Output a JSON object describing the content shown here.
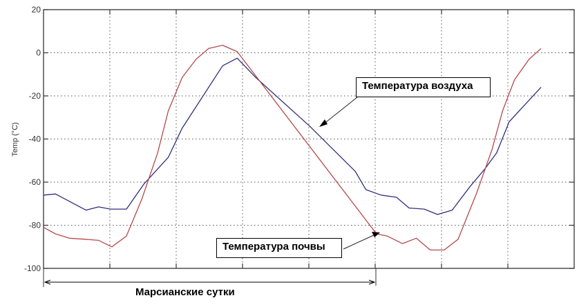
{
  "chart_data": {
    "type": "line",
    "title": "",
    "xlabel": "",
    "ylabel": "Temp (°C)",
    "ylim": [
      -100,
      20
    ],
    "yticks": [
      20,
      0,
      -20,
      -40,
      -60,
      -80,
      -100
    ],
    "ytick_labels": [
      "20",
      "0",
      "-20",
      "-40",
      "-60",
      "-80",
      "-100"
    ],
    "xlim": [
      0,
      8
    ],
    "xgrid_count": 8,
    "xtick_labels_visible": false,
    "grid": true,
    "grid_style": "dotted",
    "series": [
      {
        "name": "Температура воздуха",
        "color": "#2e2e7a",
        "x": [
          0,
          0.18,
          0.64,
          0.83,
          1.01,
          1.25,
          1.51,
          1.88,
          2.09,
          2.7,
          2.92,
          3.2,
          4.01,
          4.7,
          4.86,
          5.09,
          5.32,
          5.51,
          5.74,
          5.94,
          6.16,
          6.43,
          6.65,
          6.83,
          7.02,
          7.5
        ],
        "values": [
          -66,
          -65.5,
          -73,
          -71.5,
          -72.5,
          -72.5,
          -61,
          -48.5,
          -35,
          -6,
          -2.5,
          -11.5,
          -34,
          -55,
          -63.5,
          -66,
          -67,
          -72,
          -72.5,
          -75,
          -73,
          -62,
          -54,
          -46.5,
          -32,
          -16
        ]
      },
      {
        "name": "Температура почвы",
        "color": "#b5484a",
        "x": [
          0,
          0.18,
          0.39,
          0.63,
          0.83,
          1.03,
          1.25,
          1.48,
          1.72,
          1.88,
          2.09,
          2.3,
          2.49,
          2.7,
          2.92,
          5.02,
          5.18,
          5.41,
          5.62,
          5.83,
          6.04,
          6.25,
          6.53,
          6.76,
          6.92,
          7.1,
          7.32,
          7.5
        ],
        "values": [
          -81,
          -84,
          -86,
          -86.5,
          -87,
          -90,
          -85,
          -68,
          -46.5,
          -27,
          -11.5,
          -3,
          2,
          3.5,
          0.5,
          -84,
          -85,
          -88.5,
          -86,
          -91.5,
          -91.5,
          -86.5,
          -65,
          -45,
          -27,
          -12.5,
          -3,
          2
        ]
      }
    ],
    "annotations": [
      {
        "text": "Температура воздуха",
        "points_to_series": "Температура воздуха"
      },
      {
        "text": "Температура почвы",
        "points_to_series": "Температура почвы"
      }
    ],
    "span_annotation": {
      "text": "Марсианские сутки",
      "x_from": 0,
      "x_to": 5
    }
  },
  "labels": {
    "air_temp": "Температура воздуха",
    "soil_temp": "Температура почвы",
    "martian_day": "Марсианские сутки",
    "ylabel": "Temp (°C)"
  }
}
